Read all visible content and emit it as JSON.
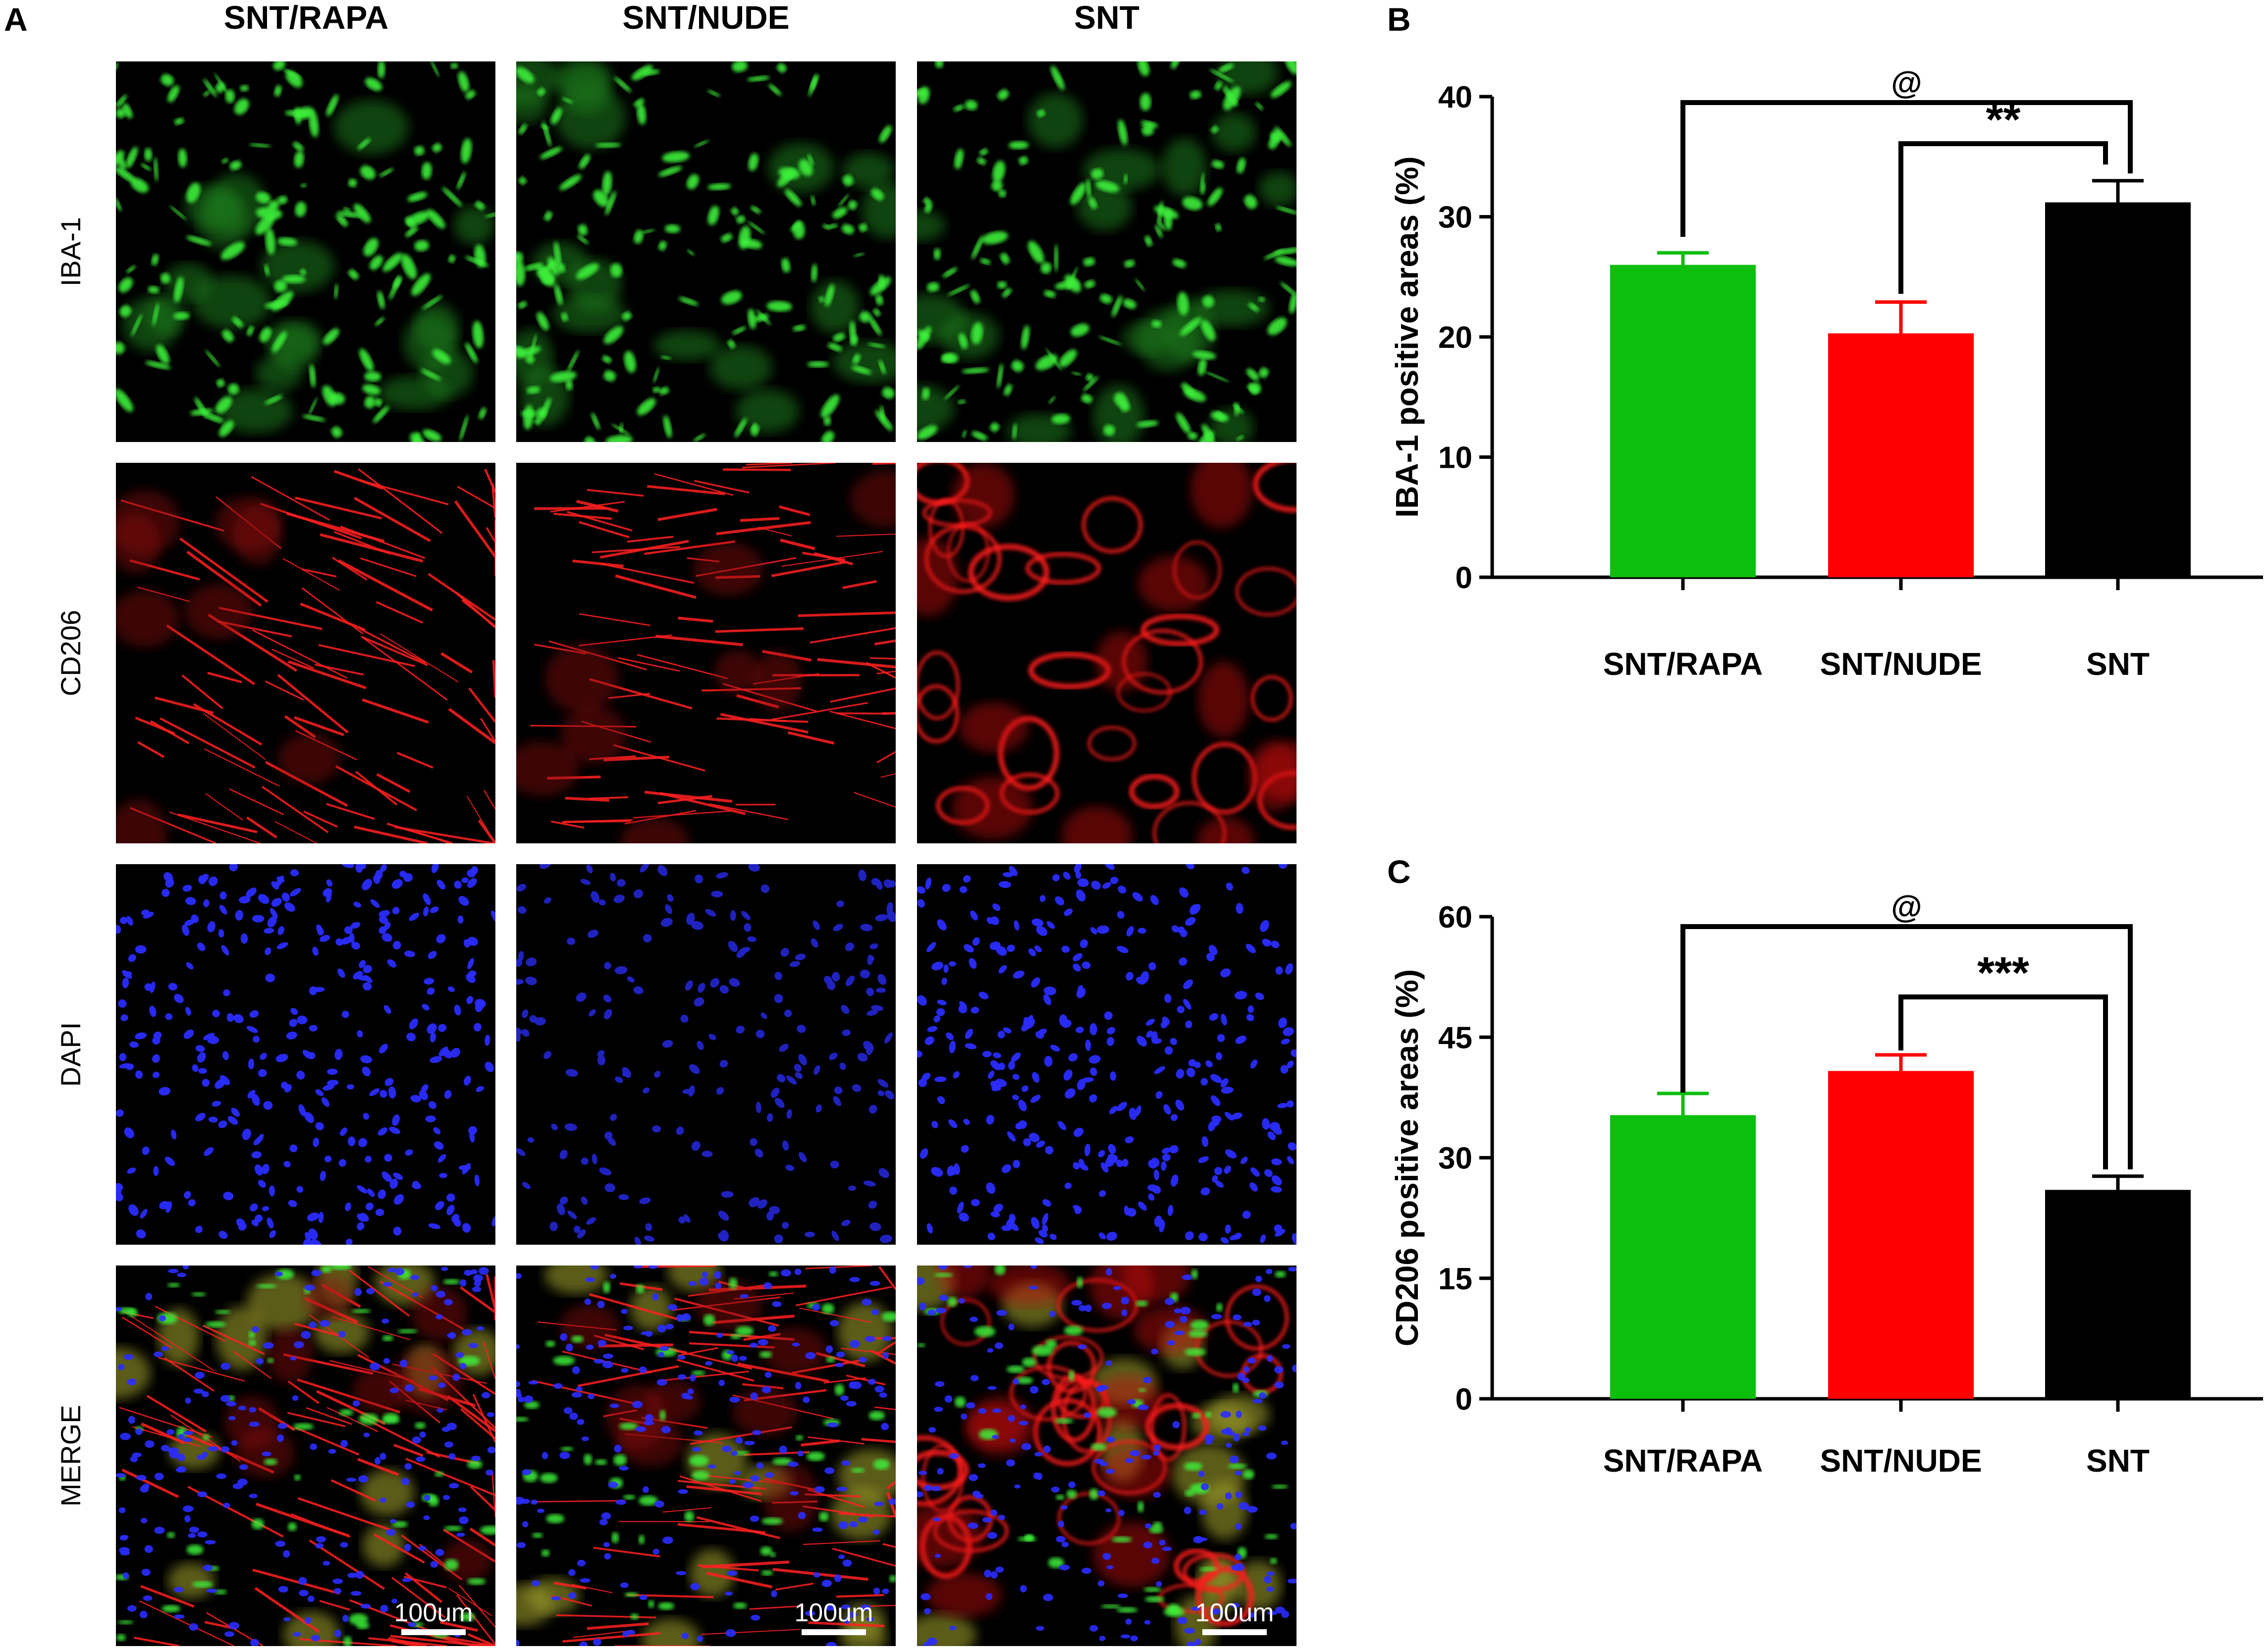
{
  "panel_a": {
    "letter": "A",
    "columns": [
      "SNT/RAPA",
      "SNT/NUDE",
      "SNT"
    ],
    "rows": [
      {
        "label": "IBA-1",
        "channel": "green",
        "color": "#33e02c"
      },
      {
        "label": "CD206",
        "channel": "red",
        "color": "#ff1c1c"
      },
      {
        "label": "DAPI",
        "channel": "blue",
        "color": "#2a2cff"
      },
      {
        "label": "MERGE",
        "channel": "merge",
        "color": "#ffffff"
      }
    ],
    "scale_bar_label": "100um"
  },
  "chart_data": [
    {
      "panel": "B",
      "type": "bar",
      "categories": [
        "SNT/RAPA",
        "SNT/NUDE",
        "SNT"
      ],
      "values": [
        26.0,
        20.3,
        31.2
      ],
      "errors": [
        1.0,
        2.6,
        1.8
      ],
      "colors": [
        "#0dbf0d",
        "#ff0000",
        "#000000"
      ],
      "ylabel": "IBA-1 positive areas (%)",
      "ylim": [
        0,
        40
      ],
      "yticks": [
        0,
        10,
        20,
        30,
        40
      ],
      "grid": false,
      "significance": [
        {
          "from": 0,
          "to": 2,
          "label": "@"
        },
        {
          "from": 1,
          "to": 2,
          "label": "**"
        }
      ]
    },
    {
      "panel": "C",
      "type": "bar",
      "categories": [
        "SNT/RAPA",
        "SNT/NUDE",
        "SNT"
      ],
      "values": [
        35.3,
        40.8,
        26.0
      ],
      "errors": [
        2.7,
        2.0,
        1.7
      ],
      "colors": [
        "#0dbf0d",
        "#ff0000",
        "#000000"
      ],
      "ylabel": "CD206 positive areas (%)",
      "ylim": [
        0,
        60
      ],
      "yticks": [
        0,
        15,
        30,
        45,
        60
      ],
      "grid": false,
      "significance": [
        {
          "from": 0,
          "to": 2,
          "label": "@"
        },
        {
          "from": 1,
          "to": 2,
          "label": "***"
        }
      ]
    }
  ]
}
